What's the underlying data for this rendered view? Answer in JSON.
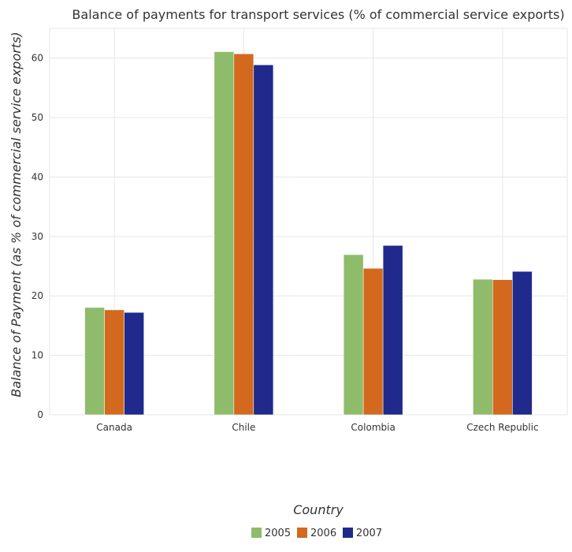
{
  "chart_data": {
    "type": "bar",
    "title": "Balance of payments for transport services (% of commercial service exports)",
    "xlabel": "Country",
    "ylabel": "Balance of Payment (as % of commercial service exports)",
    "categories": [
      "Canada",
      "Chile",
      "Colombia",
      "Czech Republic"
    ],
    "series": [
      {
        "name": "2005",
        "color": "#8fbc6a",
        "values": [
          18.05,
          61.08,
          26.93,
          22.8
        ]
      },
      {
        "name": "2006",
        "color": "#d2691e",
        "values": [
          17.65,
          60.72,
          24.63,
          22.72
        ]
      },
      {
        "name": "2007",
        "color": "#1f2a8c",
        "values": [
          17.22,
          58.86,
          28.48,
          24.12
        ]
      }
    ],
    "yticks": [
      0,
      10,
      20,
      30,
      40,
      50,
      60
    ],
    "ylim": [
      0,
      65
    ],
    "grid": true,
    "legend": "bottom-center"
  }
}
